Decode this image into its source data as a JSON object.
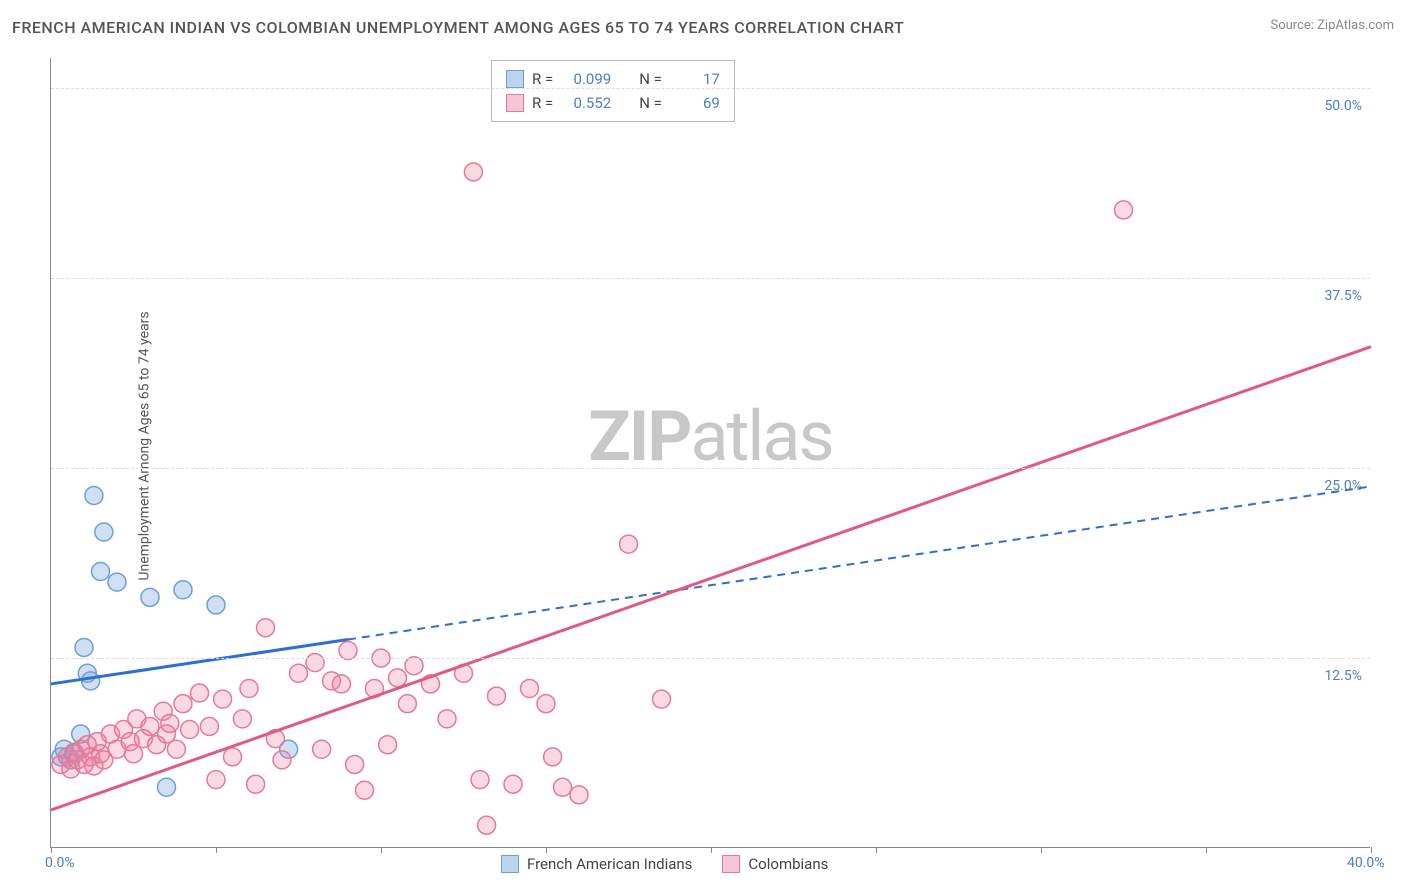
{
  "title": "FRENCH AMERICAN INDIAN VS COLOMBIAN UNEMPLOYMENT AMONG AGES 65 TO 74 YEARS CORRELATION CHART",
  "source": "Source: ZipAtlas.com",
  "y_axis_label": "Unemployment Among Ages 65 to 74 years",
  "watermark_bold": "ZIP",
  "watermark_light": "atlas",
  "chart": {
    "type": "scatter",
    "xlim": [
      0,
      40
    ],
    "ylim": [
      0,
      52
    ],
    "x_ticks": [
      0,
      5,
      10,
      15,
      20,
      25,
      30,
      35,
      40
    ],
    "x_tick_labels": {
      "0": "0.0%",
      "40": "40.0%"
    },
    "y_ticks": [
      12.5,
      25.0,
      37.5,
      50.0
    ],
    "y_tick_labels": [
      "12.5%",
      "25.0%",
      "37.5%",
      "50.0%"
    ],
    "grid_color": "#dddddd",
    "background_color": "#ffffff",
    "axis_color": "#888888",
    "tick_label_color": "#4a7ec9",
    "series": [
      {
        "name": "French American Indians",
        "color_fill": "rgba(120,165,220,0.35)",
        "color_stroke": "#6f9fd8",
        "swatch_fill": "#bdd4ef",
        "swatch_stroke": "#6f9fd8",
        "marker_radius": 9,
        "R": "0.099",
        "N": "17",
        "trend": {
          "color": "#2f6fd0",
          "width": 3,
          "dash_solid_end_x": 9,
          "x1": 0,
          "y1": 10.8,
          "x2": 40,
          "y2": 23.8
        },
        "points": [
          [
            0.3,
            6.0
          ],
          [
            0.4,
            6.5
          ],
          [
            0.6,
            5.8
          ],
          [
            0.7,
            6.2
          ],
          [
            0.9,
            7.5
          ],
          [
            1.0,
            13.2
          ],
          [
            1.1,
            11.5
          ],
          [
            1.2,
            11.0
          ],
          [
            1.3,
            23.2
          ],
          [
            1.5,
            18.2
          ],
          [
            1.6,
            20.8
          ],
          [
            2.0,
            17.5
          ],
          [
            3.0,
            16.5
          ],
          [
            3.5,
            4.0
          ],
          [
            4.0,
            17.0
          ],
          [
            5.0,
            16.0
          ],
          [
            7.2,
            6.5
          ]
        ]
      },
      {
        "name": "Colombians",
        "color_fill": "rgba(235,130,160,0.30)",
        "color_stroke": "#e47a9a",
        "swatch_fill": "#f5c6d6",
        "swatch_stroke": "#e47a9a",
        "marker_radius": 9,
        "R": "0.552",
        "N": "69",
        "trend": {
          "color": "#e05a82",
          "width": 3,
          "x1": 0,
          "y1": 2.5,
          "x2": 40,
          "y2": 33.0
        },
        "points": [
          [
            0.3,
            5.5
          ],
          [
            0.5,
            6.0
          ],
          [
            0.6,
            5.2
          ],
          [
            0.7,
            6.3
          ],
          [
            0.8,
            5.8
          ],
          [
            0.9,
            6.5
          ],
          [
            1.0,
            5.5
          ],
          [
            1.1,
            6.8
          ],
          [
            1.2,
            6.0
          ],
          [
            1.3,
            5.4
          ],
          [
            1.4,
            7.0
          ],
          [
            1.5,
            6.2
          ],
          [
            1.6,
            5.8
          ],
          [
            1.8,
            7.5
          ],
          [
            2.0,
            6.5
          ],
          [
            2.2,
            7.8
          ],
          [
            2.4,
            7.0
          ],
          [
            2.5,
            6.2
          ],
          [
            2.6,
            8.5
          ],
          [
            2.8,
            7.2
          ],
          [
            3.0,
            8.0
          ],
          [
            3.2,
            6.8
          ],
          [
            3.4,
            9.0
          ],
          [
            3.5,
            7.5
          ],
          [
            3.6,
            8.2
          ],
          [
            3.8,
            6.5
          ],
          [
            4.0,
            9.5
          ],
          [
            4.2,
            7.8
          ],
          [
            4.5,
            10.2
          ],
          [
            4.8,
            8.0
          ],
          [
            5.0,
            4.5
          ],
          [
            5.2,
            9.8
          ],
          [
            5.5,
            6.0
          ],
          [
            5.8,
            8.5
          ],
          [
            6.0,
            10.5
          ],
          [
            6.2,
            4.2
          ],
          [
            6.5,
            14.5
          ],
          [
            6.8,
            7.2
          ],
          [
            7.0,
            5.8
          ],
          [
            7.5,
            11.5
          ],
          [
            8.0,
            12.2
          ],
          [
            8.2,
            6.5
          ],
          [
            8.5,
            11.0
          ],
          [
            8.8,
            10.8
          ],
          [
            9.0,
            13.0
          ],
          [
            9.2,
            5.5
          ],
          [
            9.5,
            3.8
          ],
          [
            9.8,
            10.5
          ],
          [
            10.0,
            12.5
          ],
          [
            10.2,
            6.8
          ],
          [
            10.5,
            11.2
          ],
          [
            10.8,
            9.5
          ],
          [
            11.0,
            12.0
          ],
          [
            11.5,
            10.8
          ],
          [
            12.0,
            8.5
          ],
          [
            12.5,
            11.5
          ],
          [
            12.8,
            44.5
          ],
          [
            13.0,
            4.5
          ],
          [
            13.2,
            1.5
          ],
          [
            13.5,
            10.0
          ],
          [
            14.0,
            4.2
          ],
          [
            14.5,
            10.5
          ],
          [
            15.0,
            9.5
          ],
          [
            15.5,
            4.0
          ],
          [
            16.0,
            3.5
          ],
          [
            17.5,
            20.0
          ],
          [
            18.5,
            9.8
          ],
          [
            32.5,
            42.0
          ],
          [
            15.2,
            6.0
          ]
        ]
      }
    ]
  },
  "stats_box": {
    "label_R": "R =",
    "label_N": "N ="
  },
  "bottom_legend": {
    "items": [
      "French American Indians",
      "Colombians"
    ]
  }
}
